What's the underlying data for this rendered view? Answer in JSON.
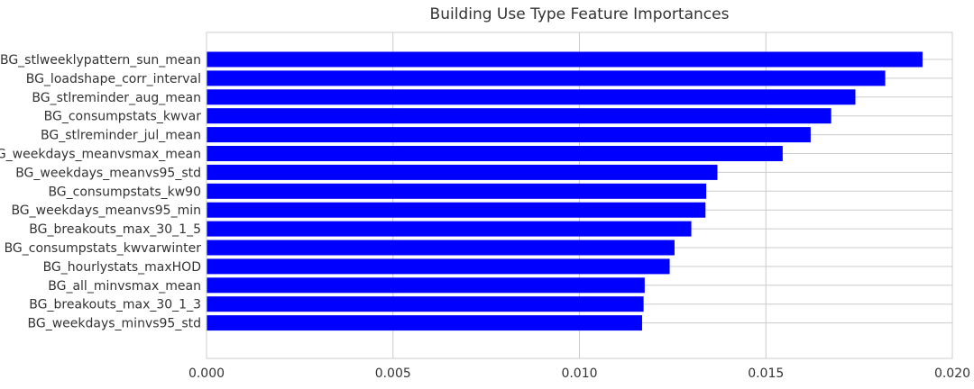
{
  "chart_data": {
    "type": "bar",
    "orientation": "horizontal",
    "title": "Building Use Type Feature Importances",
    "xlabel": "",
    "ylabel": "",
    "xlim": [
      0.0,
      0.02
    ],
    "xticks": [
      "0.000",
      "0.005",
      "0.010",
      "0.015",
      "0.020"
    ],
    "xtick_values": [
      0.0,
      0.005,
      0.01,
      0.015,
      0.02
    ],
    "grid": true,
    "bar_color": "#0000ff",
    "categories": [
      "BG_stlweeklypattern_sun_mean",
      "BG_loadshape_corr_interval",
      "BG_stlreminder_aug_mean",
      "BG_consumpstats_kwvar",
      "BG_stlreminder_jul_mean",
      "BG_weekdays_meanvsmax_mean",
      "BG_weekdays_meanvs95_std",
      "BG_consumpstats_kw90",
      "BG_weekdays_meanvs95_min",
      "BG_breakouts_max_30_1_5",
      "BG_consumpstats_kwvarwinter",
      "BG_hourlystats_maxHOD",
      "BG_all_minvsmax_mean",
      "BG_breakouts_max_30_1_3",
      "BG_weekdays_minvs95_std"
    ],
    "values": [
      0.0192,
      0.0182,
      0.0174,
      0.01675,
      0.0162,
      0.01545,
      0.0137,
      0.0134,
      0.01338,
      0.013,
      0.01255,
      0.01242,
      0.01175,
      0.01172,
      0.01168
    ]
  },
  "colors": {
    "bar": "#0000ff",
    "grid": "#cccccc",
    "text": "#333333"
  }
}
